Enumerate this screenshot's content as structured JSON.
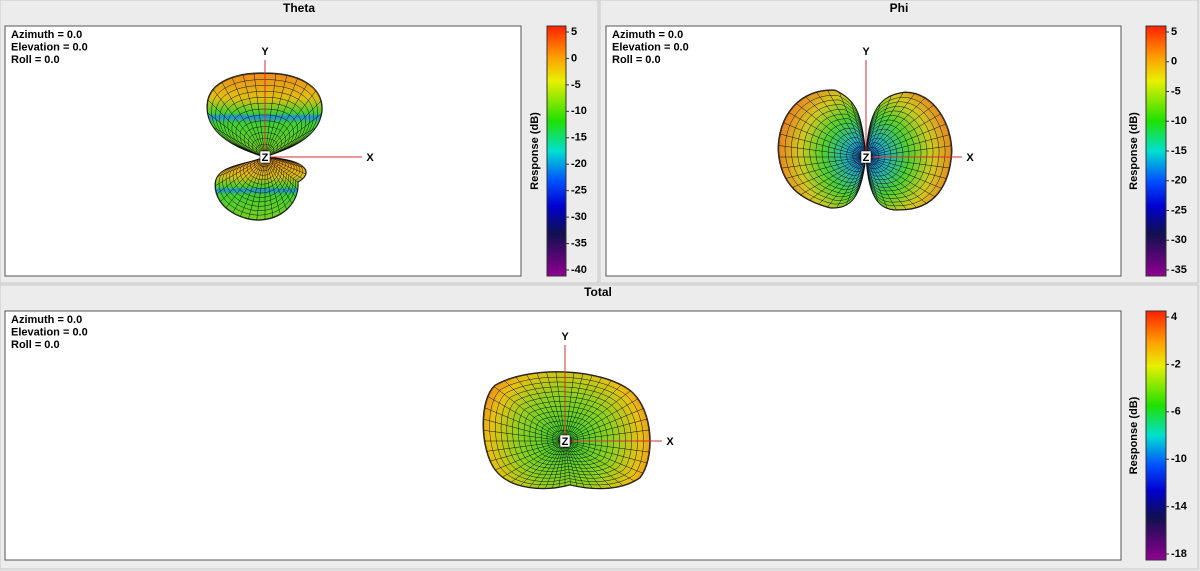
{
  "panels": [
    {
      "title": "Theta",
      "view": [
        "Azimuth = 0.0",
        "Elevation = 0.0",
        "Roll = 0.0"
      ],
      "axes": {
        "y": "Y",
        "x": "X",
        "z": "Z"
      },
      "colorbar": {
        "label": "Response  (dB)",
        "ticks": [
          "5",
          "0",
          "-5",
          "-10",
          "-15",
          "-20",
          "-25",
          "-30",
          "-35",
          "-40"
        ]
      }
    },
    {
      "title": "Phi",
      "view": [
        "Azimuth = 0.0",
        "Elevation = 0.0",
        "Roll = 0.0"
      ],
      "axes": {
        "y": "Y",
        "x": "X",
        "z": "Z"
      },
      "colorbar": {
        "label": "Response  (dB)",
        "ticks": [
          "5",
          "0",
          "-5",
          "-10",
          "-15",
          "-20",
          "-25",
          "-30",
          "-35"
        ]
      }
    },
    {
      "title": "Total",
      "view": [
        "Azimuth = 0.0",
        "Elevation = 0.0",
        "Roll = 0.0"
      ],
      "axes": {
        "y": "Y",
        "x": "X",
        "z": "Z"
      },
      "colorbar": {
        "label": "Response  (dB)",
        "ticks": [
          "4",
          "-2",
          "-6",
          "-10",
          "-14",
          "-18"
        ]
      }
    }
  ]
}
